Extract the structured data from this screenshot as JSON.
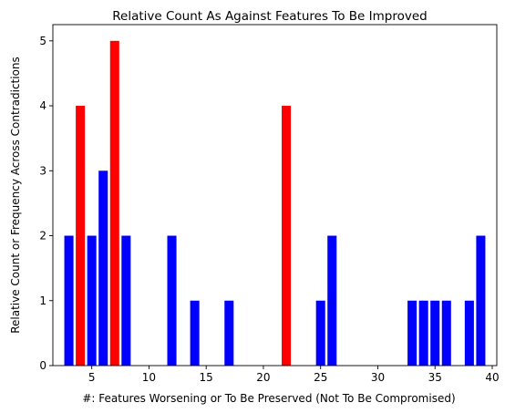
{
  "chart_data": {
    "type": "bar",
    "title": "Relative Count As Against Features To Be Improved",
    "xlabel": "#: Features Worsening or To Be Preserved (Not To Be Compromised)",
    "ylabel": "Relative Count or Frequency Across Contradictions",
    "xlim": [
      1.6,
      40.4
    ],
    "ylim": [
      0,
      5.25
    ],
    "xticks": [
      5,
      10,
      15,
      20,
      25,
      30,
      35,
      40
    ],
    "yticks": [
      0,
      1,
      2,
      3,
      4,
      5
    ],
    "grid": false,
    "bar_width": 0.8,
    "bars": [
      {
        "x": 3,
        "value": 2,
        "color": "#0000ff"
      },
      {
        "x": 4,
        "value": 4,
        "color": "#ff0000"
      },
      {
        "x": 5,
        "value": 2,
        "color": "#0000ff"
      },
      {
        "x": 6,
        "value": 3,
        "color": "#0000ff"
      },
      {
        "x": 7,
        "value": 5,
        "color": "#ff0000"
      },
      {
        "x": 8,
        "value": 2,
        "color": "#0000ff"
      },
      {
        "x": 12,
        "value": 2,
        "color": "#0000ff"
      },
      {
        "x": 14,
        "value": 1,
        "color": "#0000ff"
      },
      {
        "x": 17,
        "value": 1,
        "color": "#0000ff"
      },
      {
        "x": 22,
        "value": 4,
        "color": "#ff0000"
      },
      {
        "x": 25,
        "value": 1,
        "color": "#0000ff"
      },
      {
        "x": 26,
        "value": 2,
        "color": "#0000ff"
      },
      {
        "x": 33,
        "value": 1,
        "color": "#0000ff"
      },
      {
        "x": 34,
        "value": 1,
        "color": "#0000ff"
      },
      {
        "x": 35,
        "value": 1,
        "color": "#0000ff"
      },
      {
        "x": 36,
        "value": 1,
        "color": "#0000ff"
      },
      {
        "x": 38,
        "value": 1,
        "color": "#0000ff"
      },
      {
        "x": 39,
        "value": 2,
        "color": "#0000ff"
      }
    ]
  }
}
